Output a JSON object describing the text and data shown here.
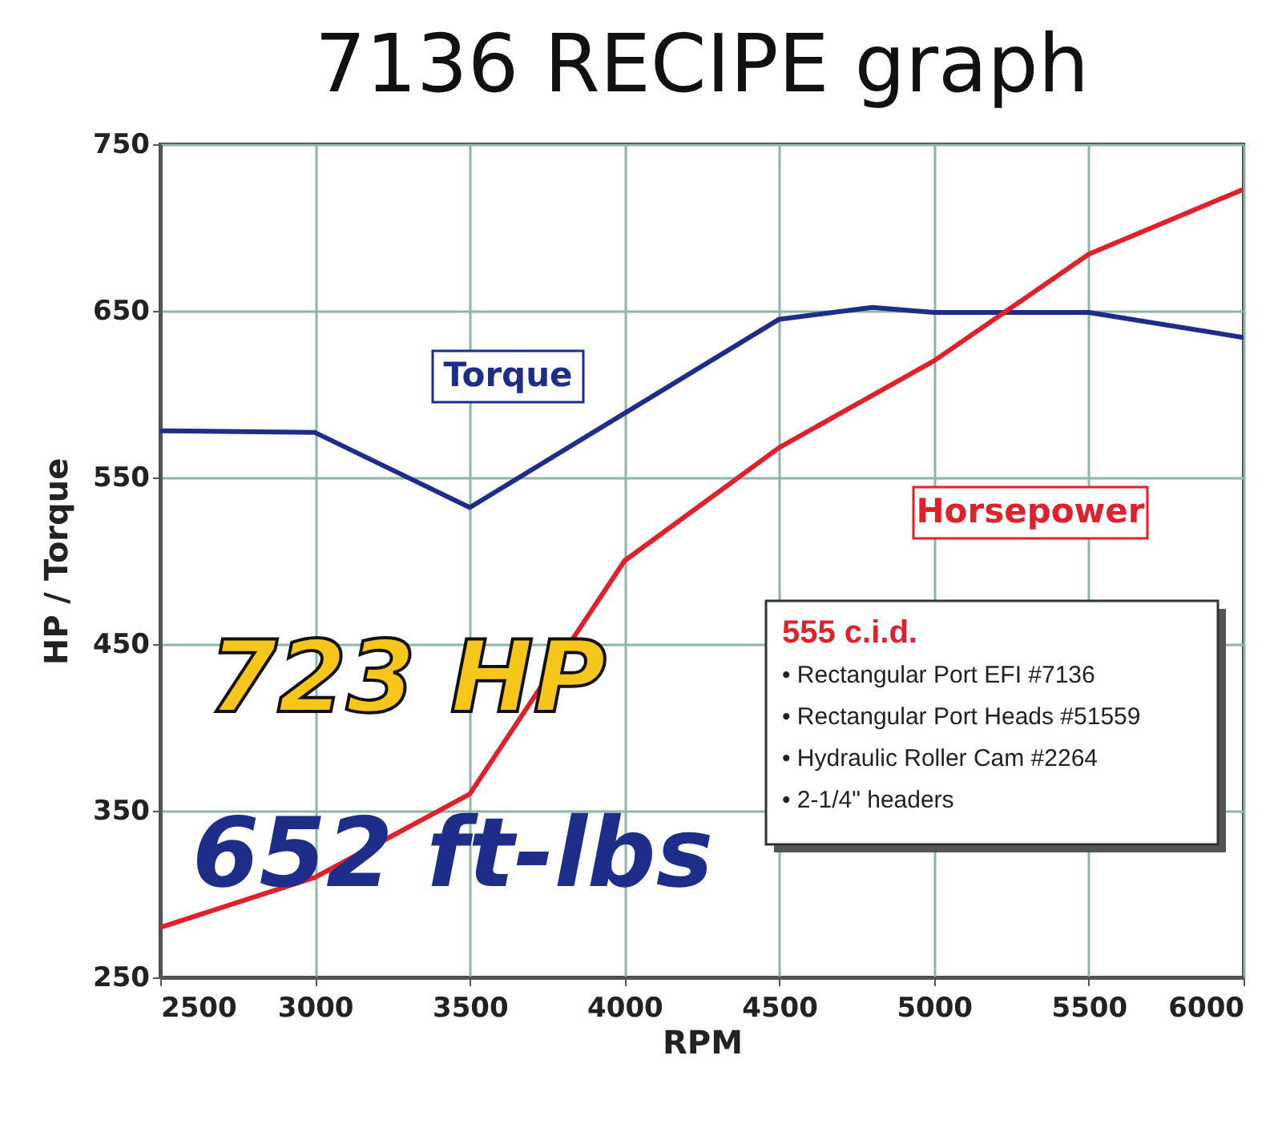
{
  "chart_data": {
    "type": "line",
    "title": "7136 RECIPE graph",
    "xlabel": "RPM",
    "ylabel": "HP / Torque",
    "x": [
      2500,
      3000,
      3500,
      4500,
      4800,
      5000,
      5500,
      6000
    ],
    "series": [
      {
        "name": "Torque",
        "color": "#1f2d8a",
        "values": [
          578,
          577,
          532,
          645,
          652,
          649,
          649,
          634
        ]
      },
      {
        "name": "Horsepower",
        "color": "#e0202a",
        "x": [
          2500,
          3000,
          3500,
          3750,
          4000,
          4500,
          5000,
          5500,
          6000
        ],
        "values": [
          280,
          310,
          360,
          430,
          500,
          568,
          620,
          684,
          723
        ]
      }
    ],
    "xlim": [
      2500,
      6000
    ],
    "xticks": [
      2500,
      3000,
      3500,
      4000,
      4500,
      5000,
      5500,
      6000
    ],
    "ylim": [
      250,
      750
    ],
    "yticks": [
      250,
      350,
      450,
      550,
      650,
      750
    ],
    "grid": true,
    "marker": "none",
    "line_style": "solid",
    "annotations": [
      "723 HP",
      "652 ft-lbs",
      "555 c.i.d.",
      "• Rectangular Port EFI #7136",
      "• Rectangular Port Heads #51559",
      "• Hydraulic Roller Cam #2264",
      "• 2-1/4\" headers"
    ]
  }
}
